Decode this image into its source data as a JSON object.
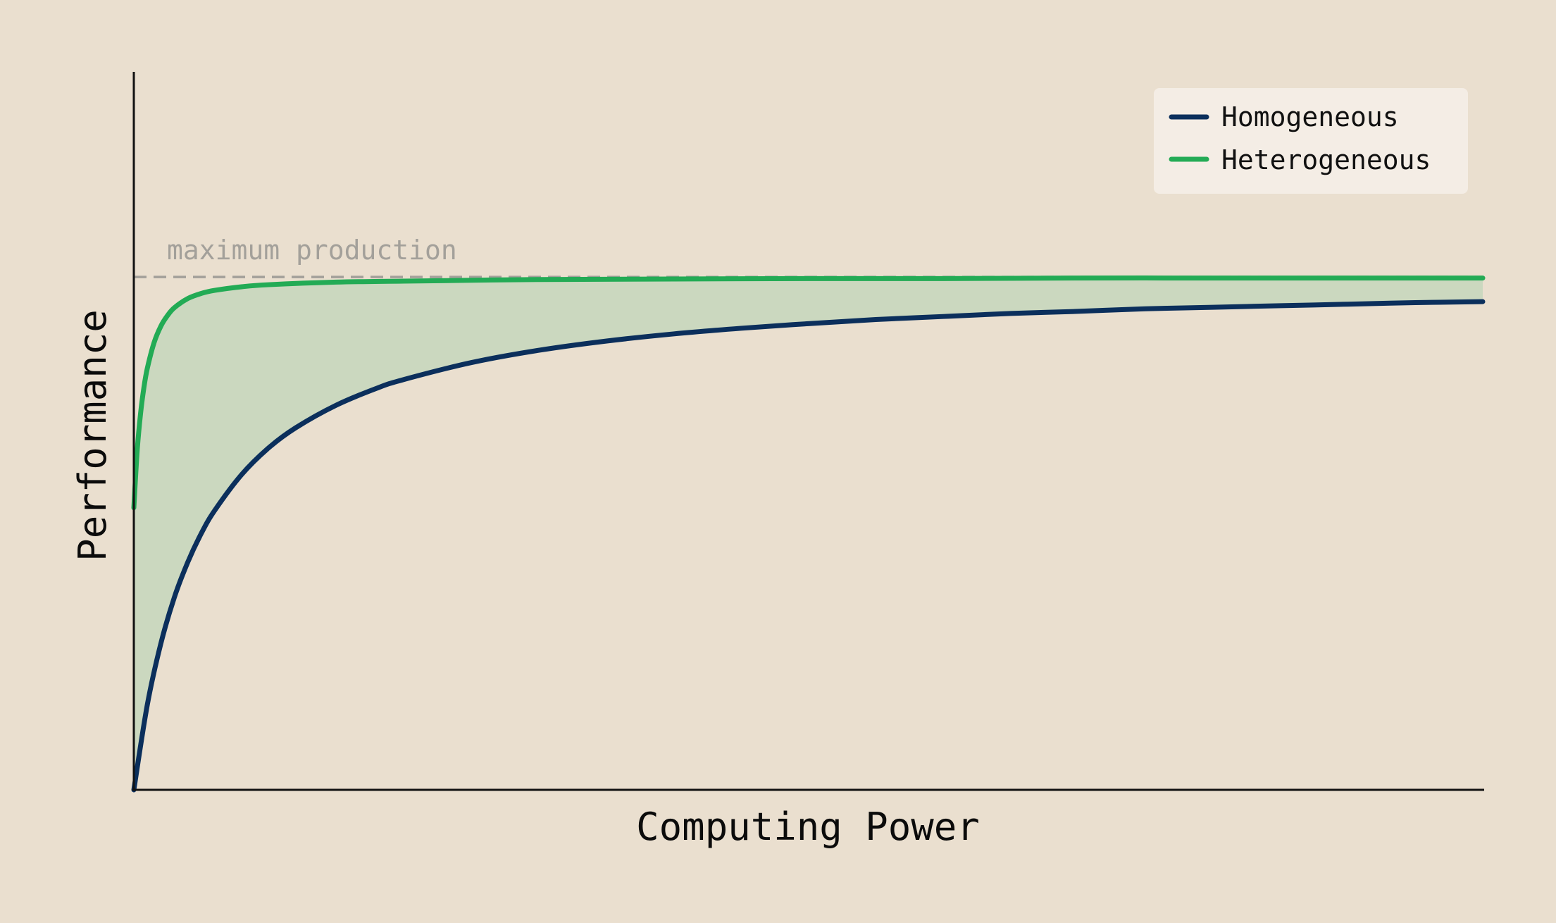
{
  "chart_data": {
    "type": "line",
    "xlabel": "Computing Power",
    "ylabel": "Performance",
    "xlim": [
      0,
      100
    ],
    "ylim": [
      0,
      1.4
    ],
    "reference_line": {
      "label": "maximum production",
      "y": 1.0,
      "color": "#a3a09a",
      "style": "dashed"
    },
    "legend": {
      "position": "top-right",
      "entries": [
        "Homogeneous",
        "Heterogeneous"
      ]
    },
    "fill_between": {
      "series": [
        "Heterogeneous",
        "Homogeneous"
      ],
      "color": "#cbd8bf"
    },
    "series": [
      {
        "name": "Homogeneous",
        "color": "#0b2f5c",
        "x": [
          0,
          1,
          2,
          3,
          4,
          5,
          6,
          8,
          10,
          12,
          15,
          18,
          20,
          25,
          30,
          35,
          40,
          45,
          50,
          55,
          60,
          65,
          70,
          75,
          80,
          85,
          90,
          95,
          100
        ],
        "y": [
          0.0,
          0.166,
          0.285,
          0.375,
          0.444,
          0.5,
          0.545,
          0.615,
          0.667,
          0.706,
          0.75,
          0.783,
          0.8,
          0.833,
          0.857,
          0.875,
          0.889,
          0.9,
          0.909,
          0.917,
          0.923,
          0.929,
          0.933,
          0.938,
          0.941,
          0.944,
          0.947,
          0.95,
          0.952
        ]
      },
      {
        "name": "Heterogeneous",
        "color": "#23ab55",
        "x": [
          0,
          0.25,
          0.5,
          0.75,
          1,
          1.5,
          2,
          2.5,
          3,
          4,
          5,
          6,
          8,
          10,
          15,
          20,
          30,
          40,
          50,
          60,
          70,
          80,
          90,
          100
        ],
        "y": [
          0.55,
          0.662,
          0.734,
          0.785,
          0.822,
          0.872,
          0.904,
          0.925,
          0.94,
          0.958,
          0.968,
          0.974,
          0.981,
          0.985,
          0.99,
          0.992,
          0.995,
          0.996,
          0.997,
          0.997,
          0.998,
          0.998,
          0.998,
          0.998
        ]
      }
    ]
  }
}
